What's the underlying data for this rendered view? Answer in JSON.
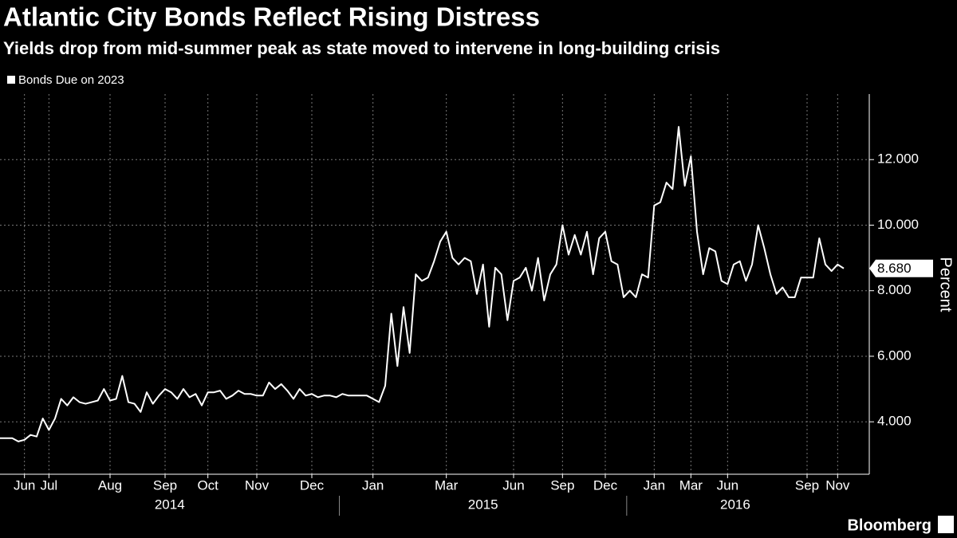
{
  "chart_data": {
    "type": "line",
    "title": "Atlantic City Bonds Reflect Rising Distress",
    "subtitle": "Yields drop from mid-summer peak as state moved to intervene in long-building crisis",
    "y_axis_label": "Percent",
    "source": "Bloomberg",
    "categories": [
      null,
      null,
      null,
      null,
      "Jun",
      null,
      null,
      null,
      "Jul",
      null,
      null,
      null,
      null,
      null,
      null,
      null,
      null,
      null,
      "Aug",
      null,
      null,
      null,
      null,
      null,
      null,
      null,
      null,
      "Sep",
      null,
      null,
      null,
      null,
      null,
      null,
      "Oct",
      null,
      null,
      null,
      null,
      null,
      null,
      null,
      "Nov",
      null,
      null,
      null,
      null,
      null,
      null,
      null,
      null,
      "Dec",
      null,
      null,
      null,
      null,
      null,
      null,
      null,
      null,
      null,
      "Jan",
      null,
      null,
      null,
      null,
      null,
      null,
      null,
      null,
      null,
      null,
      null,
      "Mar",
      null,
      null,
      null,
      null,
      null,
      null,
      null,
      null,
      null,
      null,
      "Jun",
      null,
      null,
      null,
      null,
      null,
      null,
      null,
      "Sep",
      null,
      null,
      null,
      null,
      null,
      null,
      "Dec",
      null,
      null,
      null,
      null,
      null,
      null,
      null,
      "Jan",
      null,
      null,
      null,
      null,
      null,
      "Mar",
      null,
      null,
      null,
      null,
      null,
      "Jun",
      null,
      null,
      null,
      null,
      null,
      null,
      null,
      null,
      null,
      null,
      null,
      null,
      "Sep",
      null,
      null,
      null,
      null,
      "Nov",
      null
    ],
    "year_groups": [
      {
        "label": "2014",
        "start": 0,
        "end": 55
      },
      {
        "label": "2015",
        "start": 56,
        "end": 102
      },
      {
        "label": "2016",
        "start": 103,
        "end": 138
      }
    ],
    "series": [
      {
        "name": "Bonds Due on 2023",
        "color": "#ffffff",
        "values": [
          3.5,
          3.5,
          3.5,
          3.4,
          3.45,
          3.6,
          3.55,
          4.1,
          3.75,
          4.1,
          4.7,
          4.5,
          4.75,
          4.6,
          4.55,
          4.6,
          4.65,
          5.0,
          4.65,
          4.7,
          5.4,
          4.6,
          4.55,
          4.3,
          4.9,
          4.55,
          4.8,
          5.0,
          4.9,
          4.7,
          5.0,
          4.75,
          4.85,
          4.5,
          4.9,
          4.9,
          4.95,
          4.7,
          4.8,
          4.95,
          4.85,
          4.85,
          4.8,
          4.8,
          5.2,
          5.0,
          5.15,
          4.95,
          4.7,
          5.0,
          4.8,
          4.85,
          4.75,
          4.8,
          4.8,
          4.75,
          4.85,
          4.8,
          4.8,
          4.8,
          4.8,
          4.7,
          4.6,
          5.1,
          7.3,
          5.7,
          7.5,
          6.1,
          8.5,
          8.3,
          8.4,
          8.9,
          9.5,
          9.8,
          9.0,
          8.8,
          9.0,
          8.9,
          7.9,
          8.8,
          6.9,
          8.7,
          8.5,
          7.1,
          8.3,
          8.4,
          8.7,
          8.0,
          9.0,
          7.7,
          8.5,
          8.8,
          10.0,
          9.1,
          9.7,
          9.1,
          9.8,
          8.5,
          9.6,
          9.8,
          8.9,
          8.8,
          7.8,
          8.0,
          7.8,
          8.5,
          8.4,
          10.6,
          10.7,
          11.3,
          11.1,
          13.0,
          11.2,
          12.1,
          9.8,
          8.5,
          9.3,
          9.2,
          8.3,
          8.2,
          8.8,
          8.9,
          8.3,
          8.8,
          10.0,
          9.3,
          8.5,
          7.9,
          8.1,
          7.8,
          7.8,
          8.4,
          8.4,
          8.4,
          9.6,
          8.8,
          8.6,
          8.8,
          8.68
        ]
      }
    ],
    "end_label": "8.680",
    "ylim": [
      2.4,
      14
    ],
    "yticks": [
      {
        "value": 4,
        "label": "4.000"
      },
      {
        "value": 6,
        "label": "6.000"
      },
      {
        "value": 8,
        "label": "8.000"
      },
      {
        "value": 10,
        "label": "10.000"
      },
      {
        "value": 12,
        "label": "12.000"
      }
    ],
    "grid": true
  }
}
